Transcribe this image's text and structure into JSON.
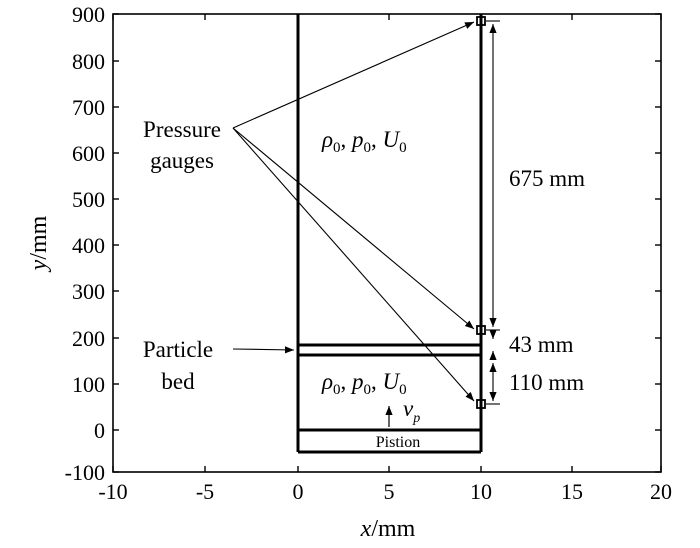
{
  "diagram": {
    "x_axis_label": {
      "italic": "x",
      "rest": "/mm"
    },
    "y_axis_label": {
      "italic": "y",
      "rest": "/mm"
    },
    "x_ticks": [
      "-10",
      "-5",
      "0",
      "5",
      "10",
      "15",
      "20"
    ],
    "y_ticks": [
      "900",
      "800",
      "700",
      "600",
      "500",
      "400",
      "300",
      "200",
      "100",
      "0",
      "-100"
    ],
    "x_range": [
      -10,
      20
    ],
    "y_range": [
      -100,
      900
    ],
    "pressure_gauges_label": [
      "Pressure",
      "gauges"
    ],
    "particle_bed_label": [
      "Particle",
      "bed"
    ],
    "upper_state": {
      "rho": "ρ",
      "p": "p",
      "U": "U",
      "sub": "0"
    },
    "lower_state": {
      "rho": "ρ",
      "p": "p",
      "U": "U",
      "sub": "0"
    },
    "piston_velocity": {
      "v": "v",
      "sub": "p"
    },
    "piston_label": "Pistion",
    "dimensions": [
      "675 mm",
      "43 mm",
      "110 mm"
    ]
  }
}
